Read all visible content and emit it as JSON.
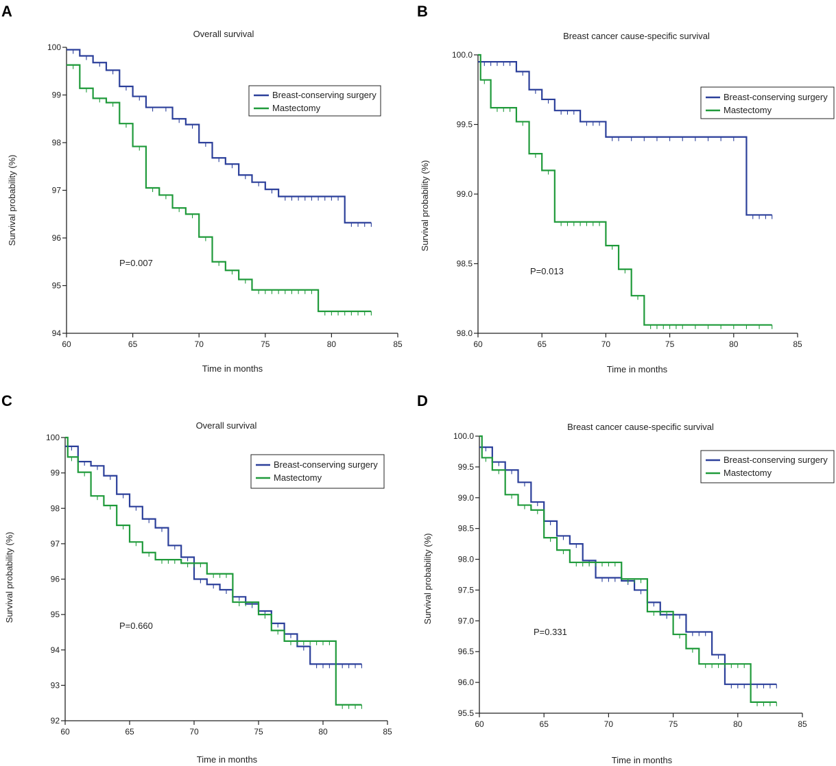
{
  "figure": {
    "colors": {
      "bcs": "#2b3f9a",
      "mast": "#1f9a3a",
      "axis": "#222222"
    },
    "legend": {
      "bcs": "Breast-conserving surgery",
      "mast": "Mastectomy"
    }
  },
  "chart_data": [
    {
      "letter": "A",
      "type": "line",
      "title": "Overall survival",
      "xlabel": "Time in months",
      "ylabel": "Survival probability (%)",
      "xlim": [
        60,
        85
      ],
      "ylim": [
        94,
        100
      ],
      "xticks": [
        60,
        65,
        70,
        75,
        80,
        85
      ],
      "xtick_labels": [
        "60",
        "65",
        "70",
        "75",
        "80",
        "85"
      ],
      "yticks": [
        94,
        95,
        96,
        97,
        98,
        99,
        100
      ],
      "ytick_labels": [
        "94",
        "95",
        "96",
        "97",
        "98",
        "99",
        "100"
      ],
      "p_value": "P=0.007",
      "series": [
        {
          "name": "Breast-conserving surgery",
          "key": "bcs",
          "x": [
            60,
            61,
            62,
            63,
            64,
            65,
            66,
            68,
            69,
            70,
            71,
            72,
            73,
            74,
            75,
            76,
            81,
            83
          ],
          "values": [
            99.95,
            99.82,
            99.68,
            99.52,
            99.18,
            98.97,
            98.74,
            98.5,
            98.38,
            98.0,
            97.68,
            97.55,
            97.32,
            97.17,
            97.02,
            96.87,
            96.32,
            96.32
          ],
          "censor": [
            60.5,
            61.5,
            62.5,
            63.5,
            64.5,
            65.5,
            66.5,
            67.5,
            68.5,
            69.5,
            70.5,
            71.5,
            72.5,
            73.5,
            74.5,
            75.5,
            76.5,
            77,
            77.5,
            78,
            78.5,
            79,
            79.5,
            80,
            80.5,
            81.5,
            82,
            82.5,
            83
          ]
        },
        {
          "name": "Mastectomy",
          "key": "mast",
          "x": [
            60,
            61,
            62,
            63,
            64,
            65,
            66,
            67,
            68,
            69,
            70,
            71,
            72,
            73,
            74,
            79,
            83
          ],
          "values": [
            99.63,
            99.14,
            98.93,
            98.84,
            98.4,
            97.92,
            97.05,
            96.9,
            96.63,
            96.5,
            96.02,
            95.5,
            95.32,
            95.13,
            94.91,
            94.46,
            94.46
          ],
          "censor": [
            60.5,
            61.5,
            62.5,
            63.5,
            64.5,
            65.5,
            66.5,
            67.5,
            68.5,
            69.5,
            70.5,
            71.5,
            72.5,
            73.5,
            74.5,
            75,
            75.5,
            76,
            76.5,
            77,
            77.5,
            78,
            78.5,
            79.5,
            80,
            80.5,
            81,
            81.5,
            82,
            82.5,
            83
          ]
        }
      ]
    },
    {
      "letter": "B",
      "type": "line",
      "title": "Breast cancer cause-specific survival",
      "xlabel": "Time in months",
      "ylabel": "Survival probability (%)",
      "xlim": [
        60,
        85
      ],
      "ylim": [
        98,
        100
      ],
      "xticks": [
        60,
        65,
        70,
        75,
        80,
        85
      ],
      "xtick_labels": [
        "60",
        "65",
        "70",
        "75",
        "80",
        "85"
      ],
      "yticks": [
        98,
        98.5,
        99,
        99.5,
        100
      ],
      "ytick_labels": [
        "98.0",
        "98.5",
        "99.0",
        "99.5",
        "100.0"
      ],
      "p_value": "P=0.013",
      "series": [
        {
          "name": "Breast-conserving surgery",
          "key": "bcs",
          "x": [
            60,
            63,
            64,
            65,
            66,
            68,
            70,
            81,
            83
          ],
          "values": [
            99.95,
            99.88,
            99.75,
            99.68,
            99.6,
            99.52,
            99.41,
            98.85,
            98.85
          ],
          "censor": [
            60.5,
            61,
            61.5,
            62,
            62.5,
            63.5,
            64.5,
            65.5,
            66.5,
            67,
            67.5,
            68.5,
            69,
            69.5,
            70.5,
            71,
            72,
            73,
            74,
            75,
            76,
            77,
            78,
            79,
            80,
            81.5,
            82,
            82.5,
            83
          ]
        },
        {
          "name": "Mastectomy",
          "key": "mast",
          "x": [
            60,
            60.2,
            61,
            63,
            64,
            65,
            66,
            70,
            71,
            72,
            73,
            83
          ],
          "values": [
            100,
            99.82,
            99.62,
            99.52,
            99.29,
            99.17,
            98.8,
            98.63,
            98.46,
            98.27,
            98.06,
            98.06
          ],
          "censor": [
            60.5,
            61.5,
            62,
            62.5,
            63.5,
            64.5,
            65.5,
            66.5,
            67,
            67.5,
            68,
            68.5,
            69,
            69.5,
            70.5,
            71.5,
            72.5,
            73.5,
            74,
            74.5,
            75,
            75.5,
            76,
            77,
            78,
            79,
            80,
            81,
            82,
            83
          ]
        }
      ]
    },
    {
      "letter": "C",
      "type": "line",
      "title": "Overall survival",
      "xlabel": "Time in months",
      "ylabel": "Survival probability (%)",
      "xlim": [
        60,
        85
      ],
      "ylim": [
        92,
        100
      ],
      "xticks": [
        60,
        65,
        70,
        75,
        80,
        85
      ],
      "xtick_labels": [
        "60",
        "65",
        "70",
        "75",
        "80",
        "85"
      ],
      "yticks": [
        92,
        93,
        94,
        95,
        96,
        97,
        98,
        99,
        100
      ],
      "ytick_labels": [
        "92",
        "93",
        "94",
        "95",
        "96",
        "97",
        "98",
        "99",
        "100"
      ],
      "p_value": "P=0.660",
      "series": [
        {
          "name": "Breast-conserving surgery",
          "key": "bcs",
          "x": [
            60,
            61,
            62,
            63,
            64,
            65,
            66,
            67,
            68,
            69,
            70,
            71,
            72,
            73,
            74,
            75,
            76,
            77,
            78,
            79,
            83
          ],
          "values": [
            99.75,
            99.32,
            99.2,
            98.92,
            98.4,
            98.05,
            97.7,
            97.45,
            96.95,
            96.62,
            96.0,
            95.85,
            95.7,
            95.5,
            95.3,
            95.1,
            94.75,
            94.45,
            94.1,
            93.6,
            93.6
          ],
          "censor": [
            60.5,
            61.5,
            62.5,
            63.5,
            64.5,
            65.5,
            66.5,
            67.5,
            68.5,
            69.5,
            70.5,
            71.5,
            72.5,
            73.5,
            74.5,
            75.5,
            76.5,
            77.5,
            78.5,
            79.5,
            80,
            80.5,
            81,
            81.5,
            82,
            82.5,
            83
          ]
        },
        {
          "name": "Mastectomy",
          "key": "mast",
          "x": [
            60,
            60.2,
            61,
            62,
            63,
            64,
            65,
            66,
            67,
            69,
            71,
            73,
            75,
            76,
            77,
            81,
            83
          ],
          "values": [
            100,
            99.45,
            99.02,
            98.35,
            98.08,
            97.52,
            97.05,
            96.75,
            96.55,
            96.45,
            96.15,
            95.35,
            95.0,
            94.55,
            94.25,
            92.45,
            92.45
          ],
          "censor": [
            60.5,
            61.5,
            62.5,
            63.5,
            64.5,
            65.5,
            66.5,
            67.5,
            68,
            68.5,
            69.5,
            70,
            70.5,
            71.5,
            72,
            72.5,
            73.5,
            74,
            74.5,
            75.5,
            76.5,
            77.5,
            78,
            78.5,
            79,
            79.5,
            80,
            80.5,
            81.5,
            82,
            82.5,
            83
          ]
        }
      ]
    },
    {
      "letter": "D",
      "type": "line",
      "title": "Breast cancer cause-specific survival",
      "xlabel": "Time in months",
      "ylabel": "Survival probability (%)",
      "xlim": [
        60,
        85
      ],
      "ylim": [
        95.5,
        100
      ],
      "xticks": [
        60,
        65,
        70,
        75,
        80,
        85
      ],
      "xtick_labels": [
        "60",
        "65",
        "70",
        "75",
        "80",
        "85"
      ],
      "yticks": [
        95.5,
        96,
        96.5,
        97,
        97.5,
        98,
        98.5,
        99,
        99.5,
        100
      ],
      "ytick_labels": [
        "95.5",
        "96.0",
        "96.5",
        "97.0",
        "97.5",
        "98.0",
        "98.5",
        "99.0",
        "99.5",
        "100.0"
      ],
      "p_value": "P=0.331",
      "series": [
        {
          "name": "Breast-conserving surgery",
          "key": "bcs",
          "x": [
            60,
            61,
            62,
            63,
            64,
            65,
            66,
            67,
            68,
            69,
            71,
            72,
            73,
            74,
            75,
            76,
            78,
            79,
            83
          ],
          "values": [
            99.82,
            99.58,
            99.45,
            99.25,
            98.93,
            98.62,
            98.38,
            98.25,
            97.98,
            97.7,
            97.65,
            97.5,
            97.3,
            97.1,
            97.1,
            96.82,
            96.45,
            95.97,
            95.97
          ],
          "censor": [
            60.5,
            61.5,
            62.5,
            63.5,
            64.5,
            65.5,
            66.5,
            67.5,
            68.5,
            69.5,
            70,
            70.5,
            71.5,
            72.5,
            73.5,
            74.5,
            75.5,
            76.5,
            77,
            77.5,
            78.5,
            79.5,
            80,
            80.5,
            81,
            81.5,
            82,
            82.5,
            83
          ]
        },
        {
          "name": "Mastectomy",
          "key": "mast",
          "x": [
            60,
            60.2,
            61,
            62,
            63,
            64,
            65,
            66,
            67,
            71,
            73,
            75,
            76,
            77,
            81,
            83
          ],
          "values": [
            100,
            99.65,
            99.45,
            99.05,
            98.88,
            98.8,
            98.35,
            98.15,
            97.95,
            97.68,
            97.15,
            96.78,
            96.55,
            96.3,
            95.68,
            95.68
          ],
          "censor": [
            60.5,
            61.5,
            62.5,
            63.5,
            64.5,
            65.5,
            66.5,
            67.5,
            68,
            68.5,
            69,
            69.5,
            70,
            70.5,
            71.5,
            72,
            72.5,
            73.5,
            74,
            74.5,
            75.5,
            76.5,
            77.5,
            78,
            78.5,
            79,
            79.5,
            80,
            80.5,
            81.5,
            82,
            82.5,
            83
          ]
        }
      ]
    }
  ]
}
